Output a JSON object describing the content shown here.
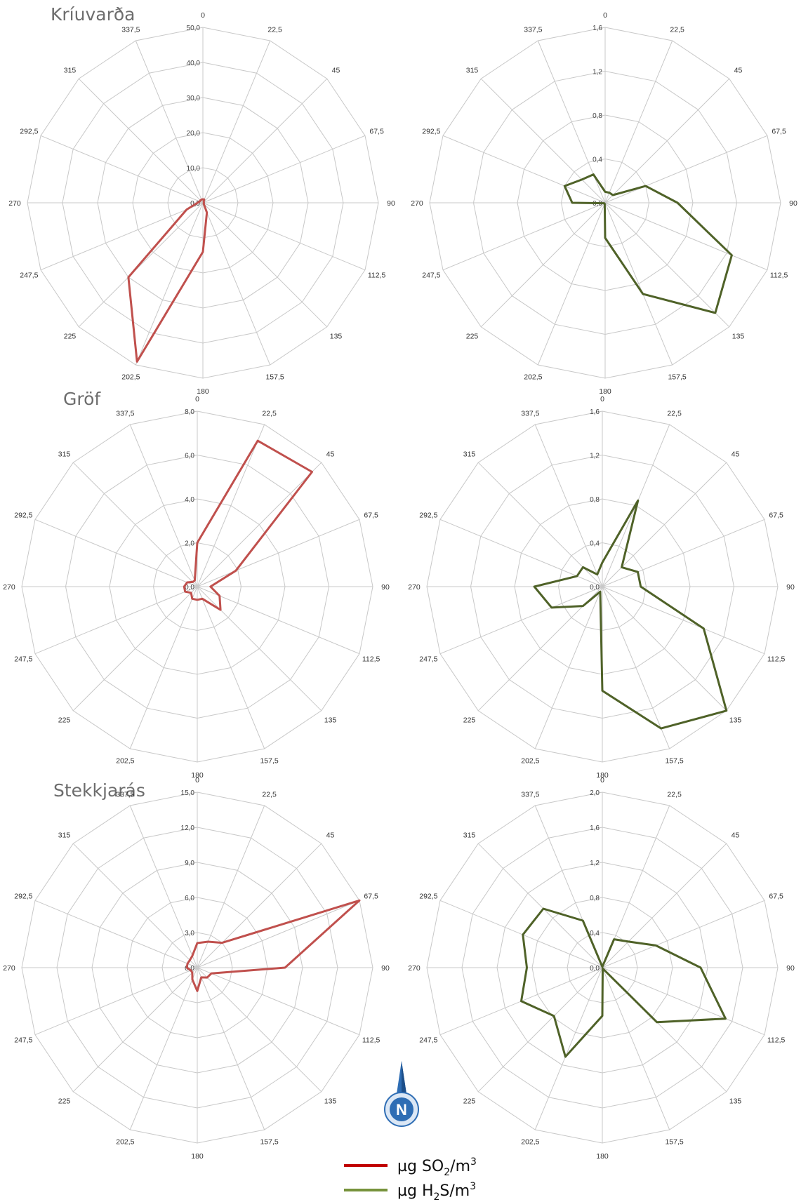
{
  "stations": [
    {
      "name": "Kríuvarða"
    },
    {
      "name": "Gröf"
    },
    {
      "name": "Stekkjarás"
    }
  ],
  "directions": [
    "0",
    "22,5",
    "45",
    "67,5",
    "90",
    "112,5",
    "135",
    "157,5",
    "180",
    "202,5",
    "225",
    "247,5",
    "270",
    "292,5",
    "315",
    "337,5"
  ],
  "colors": {
    "so2": "#c0504d",
    "h2s": "#4f6228",
    "grid": "#c8c8c8",
    "compass": "#2e6db4"
  },
  "legend": {
    "so2": {
      "prefix": "µg SO",
      "sub": "2",
      "suffix": "/m",
      "sup": "3"
    },
    "h2s": {
      "prefix": "µg H",
      "sub": "2",
      "suffix": "S/m",
      "sup": "3"
    }
  },
  "compass": {
    "letter": "N",
    "icon": "north-arrow-compass-icon"
  },
  "chart_data": [
    {
      "type": "radar",
      "station": "Kríuvarða",
      "pollutant": "SO2",
      "rmax": 50,
      "ring_labels": [
        "0,0",
        "10,0",
        "20,0",
        "30,0",
        "40,0",
        "50,0"
      ],
      "values": [
        1,
        1,
        0.3,
        0.3,
        0.3,
        0.3,
        0.3,
        3,
        14,
        49,
        30,
        5,
        1.5,
        1,
        1,
        1
      ]
    },
    {
      "type": "radar",
      "station": "Kríuvarða",
      "pollutant": "H2S",
      "rmax": 1.6,
      "ring_labels": [
        "0,0",
        "0,4",
        "0,8",
        "1,2",
        "1,6"
      ],
      "values": [
        0.1,
        0.1,
        0.1,
        0.4,
        0.66,
        1.25,
        1.42,
        0.9,
        0.32,
        0.01,
        0.01,
        0.01,
        0.3,
        0.4,
        0.3,
        0.28
      ]
    },
    {
      "type": "radar",
      "station": "Gröf",
      "pollutant": "SO2",
      "rmax": 8,
      "ring_labels": [
        "0,0",
        "2,0",
        "4,0",
        "6,0",
        "8,0"
      ],
      "values": [
        2.0,
        7.2,
        7.4,
        1.9,
        0.6,
        1.1,
        1.5,
        0.6,
        0.6,
        0.6,
        0.4,
        0.6,
        0.6,
        0.5,
        0.3,
        0.3
      ]
    },
    {
      "type": "radar",
      "station": "Gröf",
      "pollutant": "H2S",
      "rmax": 1.6,
      "ring_labels": [
        "0,0",
        "0,4",
        "0,8",
        "1,2",
        "1,6"
      ],
      "values": [
        0.22,
        0.85,
        0.25,
        0.35,
        0.35,
        1.0,
        1.65,
        1.4,
        0.95,
        0.05,
        0.25,
        0.5,
        0.62,
        0.25,
        0.25,
        0.12
      ]
    },
    {
      "type": "radar",
      "station": "Stekkjarás",
      "pollutant": "SO2",
      "rmax": 15,
      "ring_labels": [
        "0,0",
        "3,0",
        "6,0",
        "9,0",
        "12,0",
        "15,0"
      ],
      "values": [
        2.1,
        2.4,
        3.0,
        15.0,
        7.5,
        1.3,
        1.2,
        0.9,
        2.0,
        1.1,
        0.6,
        0.6,
        0.9,
        0.9,
        0.9,
        1.1
      ]
    },
    {
      "type": "radar",
      "station": "Stekkjarás",
      "pollutant": "H2S",
      "rmax": 2.0,
      "ring_labels": [
        "0,0",
        "0,4",
        "0,8",
        "1,2",
        "1,6",
        "2,0"
      ],
      "values": [
        0.01,
        0.35,
        0.42,
        0.66,
        1.12,
        1.52,
        0.88,
        0.01,
        0.55,
        1.1,
        0.78,
        1.0,
        0.86,
        0.98,
        0.95,
        0.58
      ]
    }
  ]
}
